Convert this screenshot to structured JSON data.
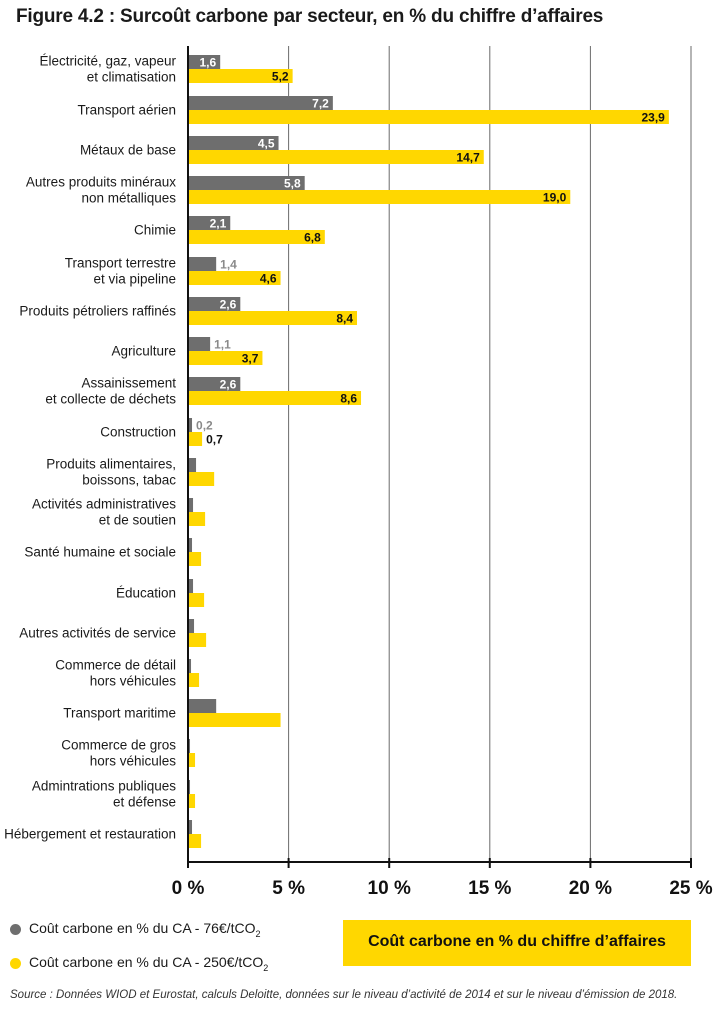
{
  "title": "Figure 4.2 : Surcoût carbone par secteur, en % du chiffre d’affaires",
  "colors": {
    "series1": "#6e6e6e",
    "series2": "#ffd700",
    "series1_label_outside": "#8a8a8a"
  },
  "legend": [
    {
      "label": "Coût carbone en % du CA - 76€/tCO",
      "sub": "2",
      "color_key": "series1"
    },
    {
      "label": "Coût carbone en % du CA - 250€/tCO",
      "sub": "2",
      "color_key": "series2"
    }
  ],
  "banner": "Coût carbone en % du chiffre d’affaires",
  "source": "Source : Données WIOD et Eurostat, calculs Deloitte, données sur le niveau d’activité de 2014 et sur le niveau d’émission de 2018.",
  "chart_data": {
    "type": "bar",
    "orientation": "horizontal",
    "title": "Surcoût carbone par secteur, en % du chiffre d’affaires",
    "xlim": [
      0,
      25
    ],
    "xticks": [
      "0 %",
      "5 %",
      "10 %",
      "15 %",
      "20 %",
      "25 %"
    ],
    "grid": true,
    "categories": [
      [
        "Électricité, gaz, vapeur",
        "et climatisation"
      ],
      [
        "Transport aérien"
      ],
      [
        "Métaux de base"
      ],
      [
        "Autres produits minéraux",
        "non métalliques"
      ],
      [
        "Chimie"
      ],
      [
        "Transport terrestre",
        "et via pipeline"
      ],
      [
        "Produits pétroliers raffinés"
      ],
      [
        "Agriculture"
      ],
      [
        "Assainissement",
        "et collecte de déchets"
      ],
      [
        "Construction"
      ],
      [
        "Produits alimentaires,",
        "boissons, tabac"
      ],
      [
        "Activités administratives",
        "et de soutien"
      ],
      [
        "Santé humaine et sociale"
      ],
      [
        "Éducation"
      ],
      [
        "Autres activités de service"
      ],
      [
        "Commerce de détail",
        "hors véhicules"
      ],
      [
        "Transport maritime"
      ],
      [
        "Commerce de gros",
        "hors véhicules"
      ],
      [
        "Admintrations publiques",
        "et défense"
      ],
      [
        "Hébergement et restauration"
      ]
    ],
    "series": [
      {
        "name": "Coût carbone en % du CA - 76€/tCO2",
        "color_key": "series1",
        "values": [
          1.6,
          7.2,
          4.5,
          5.8,
          2.1,
          1.4,
          2.6,
          1.1,
          2.6,
          0.2,
          0.4,
          0.25,
          0.2,
          0.25,
          0.3,
          0.15,
          1.4,
          0.1,
          0.1,
          0.2
        ],
        "labels": [
          "1,6",
          "7,2",
          "4,5",
          "5,8",
          "2,1",
          "1,4",
          "2,6",
          "1,1",
          "2,6",
          "0,2",
          "",
          "",
          "",
          "",
          "",
          "",
          "",
          "",
          "",
          ""
        ]
      },
      {
        "name": "Coût carbone en % du CA - 250€/tCO2",
        "color_key": "series2",
        "values": [
          5.2,
          23.9,
          14.7,
          19.0,
          6.8,
          4.6,
          8.4,
          3.7,
          8.6,
          0.7,
          1.3,
          0.85,
          0.65,
          0.8,
          0.9,
          0.55,
          4.6,
          0.35,
          0.35,
          0.65
        ],
        "labels": [
          "5,2",
          "23,9",
          "14,7",
          "19,0",
          "6,8",
          "4,6",
          "8,4",
          "3,7",
          "8,6",
          "0,7",
          "",
          "",
          "",
          "",
          "",
          "",
          "",
          "",
          "",
          ""
        ]
      }
    ]
  }
}
